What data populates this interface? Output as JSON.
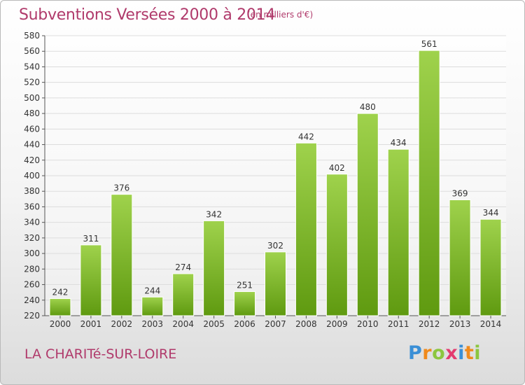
{
  "header": {
    "title": "Subventions Versées 2000 à 2014",
    "unit_note": "(en milliers d'€)"
  },
  "footer": {
    "commune": "LA CHARITé-SUR-LOIRE",
    "logo_letters": [
      {
        "char": "P",
        "color": "#3a8fd6"
      },
      {
        "char": "r",
        "color": "#f08a1c"
      },
      {
        "char": "o",
        "color": "#8cc63f"
      },
      {
        "char": "x",
        "color": "#e33b6f"
      },
      {
        "char": "i",
        "color": "#3a8fd6"
      },
      {
        "char": "t",
        "color": "#f08a1c"
      },
      {
        "char": "i",
        "color": "#8cc63f"
      }
    ]
  },
  "colors": {
    "bar_top": "#9fd24c",
    "bar_bottom": "#5f9a10",
    "title": "#b03a6b",
    "grid": "#dddddd"
  },
  "chart_data": {
    "type": "bar",
    "title": "Subventions Versées 2000 à 2014",
    "subtitle": "(en milliers d'€)",
    "xlabel": "",
    "ylabel": "",
    "categories": [
      "2000",
      "2001",
      "2002",
      "2003",
      "2004",
      "2005",
      "2006",
      "2007",
      "2008",
      "2009",
      "2010",
      "2011",
      "2012",
      "2013",
      "2014"
    ],
    "values": [
      242,
      311,
      376,
      244,
      274,
      342,
      251,
      302,
      442,
      402,
      480,
      434,
      561,
      369,
      344
    ],
    "ylim": [
      220,
      580
    ],
    "yticks": [
      220,
      240,
      260,
      280,
      300,
      320,
      340,
      360,
      380,
      400,
      420,
      440,
      460,
      480,
      500,
      520,
      540,
      560,
      580
    ],
    "grid": true,
    "data_labels": true
  }
}
